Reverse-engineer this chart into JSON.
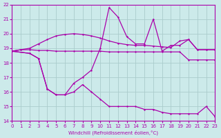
{
  "xlabel": "Windchill (Refroidissement éolien,°C)",
  "xlim": [
    0,
    23
  ],
  "ylim": [
    14,
    22
  ],
  "xticks": [
    0,
    1,
    2,
    3,
    4,
    5,
    6,
    7,
    8,
    9,
    10,
    11,
    12,
    13,
    14,
    15,
    16,
    17,
    18,
    19,
    20,
    21,
    22,
    23
  ],
  "yticks": [
    14,
    15,
    16,
    17,
    18,
    19,
    20,
    21,
    22
  ],
  "bg_color": "#cceaea",
  "grid_color": "#aacccc",
  "line_color": "#aa00aa",
  "line1_x": [
    0,
    1,
    2,
    3,
    4,
    5,
    6,
    7,
    8,
    9,
    10,
    11,
    12,
    13,
    14,
    15,
    16,
    17,
    18,
    19,
    20,
    21,
    22,
    23
  ],
  "line1_y": [
    18.8,
    18.9,
    18.9,
    18.85,
    18.85,
    18.8,
    18.8,
    18.8,
    18.8,
    18.8,
    18.8,
    18.75,
    18.75,
    18.75,
    18.75,
    18.75,
    18.75,
    18.75,
    18.75,
    18.75,
    18.2,
    18.2,
    18.2,
    18.2
  ],
  "line2_x": [
    0,
    1,
    2,
    3,
    4,
    5,
    6,
    7,
    8,
    9,
    10,
    11,
    12,
    13,
    14,
    15,
    16,
    17,
    18,
    19,
    20,
    21,
    22,
    23
  ],
  "line2_y": [
    18.8,
    18.9,
    19.0,
    19.3,
    19.6,
    19.85,
    19.95,
    20.0,
    19.95,
    19.85,
    19.7,
    19.5,
    19.35,
    19.25,
    19.2,
    19.2,
    19.15,
    19.1,
    19.05,
    19.5,
    19.6,
    18.9,
    18.9,
    18.9
  ],
  "line3_x": [
    0,
    2,
    3,
    4,
    5,
    6,
    7,
    8,
    9,
    10,
    11,
    12,
    13,
    14,
    15,
    16,
    17,
    18,
    19,
    20,
    21,
    22,
    23
  ],
  "line3_y": [
    18.8,
    18.65,
    18.3,
    16.2,
    15.8,
    15.8,
    16.6,
    17.0,
    17.5,
    19.0,
    21.8,
    21.15,
    19.8,
    19.3,
    19.3,
    21.0,
    18.8,
    19.2,
    19.2,
    19.6,
    18.9,
    18.9,
    18.9
  ],
  "line4_x": [
    0,
    2,
    3,
    4,
    5,
    6,
    7,
    8,
    9,
    10,
    11,
    12,
    13,
    14,
    15,
    16,
    17,
    18,
    19,
    20,
    21,
    22,
    23
  ],
  "line4_y": [
    18.8,
    18.65,
    18.3,
    16.2,
    15.8,
    15.8,
    16.0,
    16.5,
    16.0,
    15.5,
    15.0,
    15.0,
    15.0,
    15.0,
    14.8,
    14.8,
    14.6,
    14.5,
    14.5,
    14.5,
    14.5,
    15.0,
    14.3
  ]
}
